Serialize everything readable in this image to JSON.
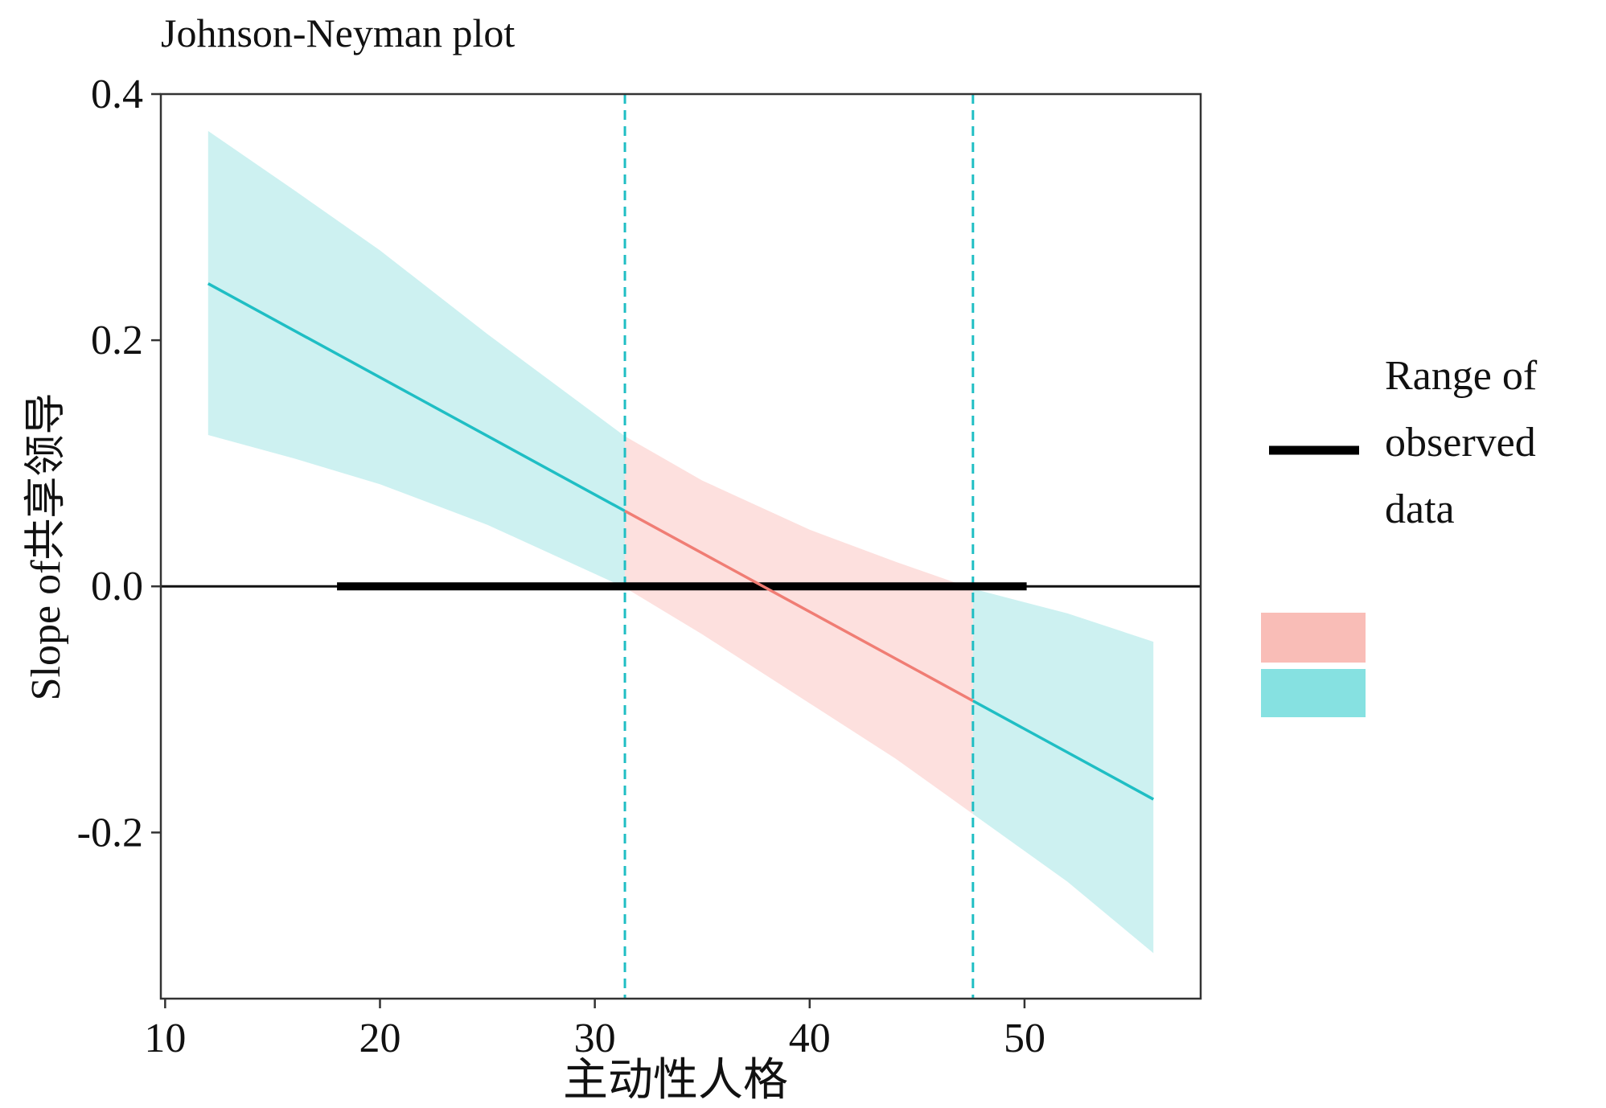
{
  "chart_data": {
    "type": "line",
    "title": "Johnson-Neyman plot",
    "xlabel": "主动性人格",
    "ylabel": "Slope of共享领导",
    "xlim": [
      9.8,
      58.2
    ],
    "ylim": [
      -0.335,
      0.4
    ],
    "x_ticks": [
      {
        "value": 10,
        "label": "10"
      },
      {
        "value": 20,
        "label": "20"
      },
      {
        "value": 30,
        "label": "30"
      },
      {
        "value": 40,
        "label": "40"
      },
      {
        "value": 50,
        "label": "50"
      }
    ],
    "y_ticks": [
      {
        "value": 0.4,
        "label": "0.4"
      },
      {
        "value": 0.2,
        "label": "0.2"
      },
      {
        "value": 0.0,
        "label": "0.0"
      },
      {
        "value": -0.2,
        "label": "-0.2"
      }
    ],
    "grid": false,
    "slope_line": {
      "x": [
        12.0,
        56.0
      ],
      "y": [
        0.246,
        -0.173
      ]
    },
    "confidence_band": {
      "x": [
        12.0,
        16.0,
        20.0,
        25.0,
        31.4,
        35.0,
        40.0,
        44.0,
        47.6,
        52.0,
        56.0
      ],
      "lower": [
        0.123,
        0.104,
        0.083,
        0.05,
        -0.001,
        -0.039,
        -0.095,
        -0.14,
        -0.185,
        -0.24,
        -0.298
      ],
      "upper": [
        0.37,
        0.322,
        0.273,
        0.205,
        0.122,
        0.086,
        0.046,
        0.02,
        -0.002,
        -0.022,
        -0.045
      ]
    },
    "johnson_neyman_points": [
      31.4,
      47.6
    ],
    "observed_range": [
      18.0,
      50.1
    ],
    "zero_line": 0.0,
    "legend": {
      "placement": "right",
      "line_label": "Range of observed data",
      "line_label_lines": [
        "Range of",
        "observed",
        "data"
      ]
    },
    "colors": {
      "significant_band": "#cdf1f1",
      "insignificant_band": "#fde0de",
      "significant_line": "#1fbec4",
      "insignificant_line": "#f07d74",
      "legend_insignificant_key": "#f9bdb7",
      "legend_significant_key": "#86e1e1",
      "observed_range_line": "#000000",
      "vline": "#1fbec4",
      "axis": "#333333"
    }
  }
}
